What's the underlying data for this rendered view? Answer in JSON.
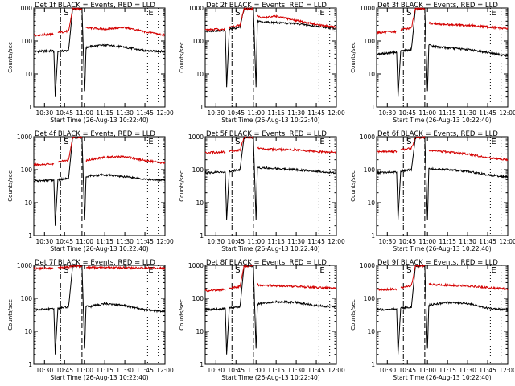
{
  "colors": {
    "events": "#000000",
    "lld": "#d40000",
    "background": "#ffffff"
  },
  "chart_data": [
    {
      "type": "line",
      "title": "Det 1f BLACK = Events, RED = LLD",
      "xlabel": "Start Time (26-Aug-13 10:22:40)",
      "ylabel": "Counts/sec",
      "x_ticks": [
        "10:30",
        "10:45",
        "11:00",
        "11:15",
        "11:30",
        "11:45",
        "12:00"
      ],
      "xlim": [
        "10:22",
        "12:00"
      ],
      "y_ticks": [
        "1",
        "10",
        "100",
        "1000"
      ],
      "ylim": [
        1,
        1000
      ],
      "y_scale": "log",
      "markers": [
        "S",
        "E"
      ],
      "grid": false,
      "series": [
        {
          "name": "Events",
          "color": "#000000",
          "x": [
            "10:22",
            "10:35",
            "10:37",
            "10:38",
            "10:40",
            "10:48",
            "10:51",
            "10:58",
            "11:00",
            "11:01",
            "11:03",
            "11:15",
            "11:30",
            "11:45",
            "12:00"
          ],
          "y": [
            48,
            50,
            50,
            2,
            48,
            52,
            950,
            950,
            3,
            60,
            68,
            75,
            65,
            50,
            48
          ]
        },
        {
          "name": "LLD",
          "color": "#d40000",
          "x": [
            "10:22",
            "10:35",
            "10:37",
            "10:38",
            "10:40",
            "10:48",
            "10:51",
            "10:58",
            "11:00",
            "11:01",
            "11:03",
            "11:15",
            "11:30",
            "11:45",
            "12:00"
          ],
          "y": [
            150,
            160,
            160,
            null,
            180,
            200,
            950,
            950,
            null,
            250,
            250,
            230,
            260,
            190,
            150
          ]
        }
      ]
    },
    {
      "type": "line",
      "title": "Det 2f BLACK = Events, RED = LLD",
      "xlabel": "Start Time (26-Aug-13 10:22:40)",
      "ylabel": "Counts/sec",
      "x_ticks": [
        "10:30",
        "10:45",
        "11:00",
        "11:15",
        "11:30",
        "11:45",
        "12:00"
      ],
      "xlim": [
        "10:22",
        "12:00"
      ],
      "y_ticks": [
        "1",
        "10",
        "100",
        "1000"
      ],
      "ylim": [
        1,
        1000
      ],
      "y_scale": "log",
      "markers": [
        "S",
        "E"
      ],
      "grid": false,
      "series": [
        {
          "name": "Events",
          "color": "#000000",
          "x": [
            "10:22",
            "10:35",
            "10:37",
            "10:38",
            "10:40",
            "10:48",
            "10:51",
            "10:58",
            "11:00",
            "11:01",
            "11:03",
            "11:15",
            "11:30",
            "11:45",
            "12:00"
          ],
          "y": [
            200,
            210,
            210,
            4,
            230,
            260,
            950,
            950,
            4,
            400,
            380,
            360,
            340,
            280,
            240
          ]
        },
        {
          "name": "LLD",
          "color": "#d40000",
          "x": [
            "10:22",
            "10:35",
            "10:37",
            "10:38",
            "10:40",
            "10:48",
            "10:51",
            "10:58",
            "11:00",
            "11:01",
            "11:03",
            "11:15",
            "11:30",
            "11:45",
            "12:00"
          ],
          "y": [
            220,
            230,
            230,
            null,
            260,
            300,
            950,
            950,
            null,
            600,
            500,
            560,
            420,
            320,
            260
          ]
        }
      ]
    },
    {
      "type": "line",
      "title": "Det 3f BLACK = Events, RED = LLD",
      "xlabel": "Start Time (26-Aug-13 10:22:40)",
      "ylabel": "Counts/sec",
      "x_ticks": [
        "10:30",
        "10:45",
        "11:00",
        "11:15",
        "11:30",
        "11:45",
        "12:00"
      ],
      "xlim": [
        "10:22",
        "12:00"
      ],
      "y_ticks": [
        "1",
        "10",
        "100",
        "1000"
      ],
      "ylim": [
        1,
        1000
      ],
      "y_scale": "log",
      "markers": [
        "S",
        "E"
      ],
      "grid": false,
      "series": [
        {
          "name": "Events",
          "color": "#000000",
          "x": [
            "10:22",
            "10:35",
            "10:37",
            "10:38",
            "10:40",
            "10:48",
            "10:51",
            "10:58",
            "11:00",
            "11:01",
            "11:03",
            "11:15",
            "11:30",
            "11:45",
            "12:00"
          ],
          "y": [
            40,
            45,
            45,
            2,
            50,
            55,
            950,
            950,
            3,
            75,
            70,
            62,
            55,
            45,
            35
          ]
        },
        {
          "name": "LLD",
          "color": "#d40000",
          "x": [
            "10:22",
            "10:35",
            "10:37",
            "10:38",
            "10:40",
            "10:48",
            "10:51",
            "10:58",
            "11:00",
            "11:01",
            "11:03",
            "11:15",
            "11:30",
            "11:45",
            "12:00"
          ],
          "y": [
            180,
            190,
            190,
            null,
            220,
            250,
            950,
            950,
            null,
            360,
            340,
            320,
            300,
            270,
            240
          ]
        }
      ]
    },
    {
      "type": "line",
      "title": "Det 4f BLACK = Events, RED = LLD",
      "xlabel": "Start Time (26-Aug-13 10:22:40)",
      "ylabel": "Counts/sec",
      "x_ticks": [
        "10:30",
        "10:45",
        "11:00",
        "11:15",
        "11:30",
        "11:45",
        "12:00"
      ],
      "xlim": [
        "10:22",
        "12:00"
      ],
      "y_ticks": [
        "1",
        "10",
        "100",
        "1000"
      ],
      "ylim": [
        1,
        1000
      ],
      "y_scale": "log",
      "markers": [
        "S",
        "E"
      ],
      "grid": false,
      "series": [
        {
          "name": "Events",
          "color": "#000000",
          "x": [
            "10:22",
            "10:35",
            "10:37",
            "10:38",
            "10:40",
            "10:48",
            "10:51",
            "10:58",
            "11:00",
            "11:01",
            "11:03",
            "11:15",
            "11:30",
            "11:45",
            "12:00"
          ],
          "y": [
            45,
            48,
            48,
            2,
            50,
            55,
            950,
            950,
            3,
            60,
            65,
            70,
            62,
            52,
            48
          ]
        },
        {
          "name": "LLD",
          "color": "#d40000",
          "x": [
            "10:22",
            "10:35",
            "10:37",
            "10:38",
            "10:40",
            "10:48",
            "10:51",
            "10:58",
            "11:00",
            "11:01",
            "11:03",
            "11:15",
            "11:30",
            "11:45",
            "12:00"
          ],
          "y": [
            140,
            150,
            150,
            null,
            170,
            200,
            950,
            950,
            null,
            190,
            200,
            240,
            250,
            190,
            160
          ]
        }
      ]
    },
    {
      "type": "line",
      "title": "Det 5f BLACK = Events, RED = LLD",
      "xlabel": "Start Time (26-Aug-13 10:22:40)",
      "ylabel": "Counts/sec",
      "x_ticks": [
        "10:30",
        "10:45",
        "11:00",
        "11:15",
        "11:30",
        "11:45",
        "12:00"
      ],
      "xlim": [
        "10:22",
        "12:00"
      ],
      "y_ticks": [
        "1",
        "10",
        "100",
        "1000"
      ],
      "ylim": [
        1,
        1000
      ],
      "y_scale": "log",
      "markers": [
        "S",
        "E"
      ],
      "grid": false,
      "series": [
        {
          "name": "Events",
          "color": "#000000",
          "x": [
            "10:22",
            "10:35",
            "10:37",
            "10:38",
            "10:40",
            "10:48",
            "10:51",
            "10:58",
            "11:00",
            "11:01",
            "11:03",
            "11:15",
            "11:30",
            "11:45",
            "12:00"
          ],
          "y": [
            80,
            85,
            85,
            3,
            90,
            100,
            950,
            950,
            3,
            120,
            115,
            110,
            100,
            90,
            80
          ]
        },
        {
          "name": "LLD",
          "color": "#d40000",
          "x": [
            "10:22",
            "10:35",
            "10:37",
            "10:38",
            "10:40",
            "10:48",
            "10:51",
            "10:58",
            "11:00",
            "11:01",
            "11:03",
            "11:15",
            "11:30",
            "11:45",
            "12:00"
          ],
          "y": [
            330,
            340,
            340,
            null,
            370,
            400,
            950,
            950,
            null,
            450,
            430,
            410,
            400,
            360,
            330
          ]
        }
      ]
    },
    {
      "type": "line",
      "title": "Det 6f BLACK = Events, RED = LLD",
      "xlabel": "Start Time (26-Aug-13 10:22:40)",
      "ylabel": "Counts/sec",
      "x_ticks": [
        "10:30",
        "10:45",
        "11:00",
        "11:15",
        "11:30",
        "11:45",
        "12:00"
      ],
      "xlim": [
        "10:22",
        "12:00"
      ],
      "y_ticks": [
        "1",
        "10",
        "100",
        "1000"
      ],
      "ylim": [
        1,
        1000
      ],
      "y_scale": "log",
      "markers": [
        "S",
        "E"
      ],
      "grid": false,
      "series": [
        {
          "name": "Events",
          "color": "#000000",
          "x": [
            "10:22",
            "10:35",
            "10:37",
            "10:38",
            "10:40",
            "10:48",
            "10:51",
            "10:58",
            "11:00",
            "11:01",
            "11:03",
            "11:15",
            "11:30",
            "11:45",
            "12:00"
          ],
          "y": [
            80,
            85,
            85,
            3,
            90,
            100,
            950,
            950,
            3,
            110,
            105,
            100,
            90,
            70,
            60
          ]
        },
        {
          "name": "LLD",
          "color": "#d40000",
          "x": [
            "10:22",
            "10:35",
            "10:37",
            "10:38",
            "10:40",
            "10:48",
            "10:51",
            "10:58",
            "11:00",
            "11:01",
            "11:03",
            "11:15",
            "11:30",
            "11:45",
            "12:00"
          ],
          "y": [
            350,
            360,
            360,
            null,
            400,
            450,
            950,
            950,
            null,
            400,
            380,
            340,
            300,
            230,
            200
          ]
        }
      ]
    },
    {
      "type": "line",
      "title": "Det 7f BLACK = Events, RED = LLD",
      "xlabel": "Start Time (26-Aug-13 10:22:40)",
      "ylabel": "Counts/sec",
      "x_ticks": [
        "10:30",
        "10:45",
        "11:00",
        "11:15",
        "11:30",
        "11:45",
        "12:00"
      ],
      "xlim": [
        "10:22",
        "12:00"
      ],
      "y_ticks": [
        "1",
        "10",
        "100",
        "1000"
      ],
      "ylim": [
        1,
        1000
      ],
      "y_scale": "log",
      "markers": [
        "S",
        "E"
      ],
      "grid": false,
      "series": [
        {
          "name": "Events",
          "color": "#000000",
          "x": [
            "10:22",
            "10:35",
            "10:37",
            "10:38",
            "10:40",
            "10:48",
            "10:51",
            "10:58",
            "11:00",
            "11:01",
            "11:03",
            "11:15",
            "11:30",
            "11:45",
            "12:00"
          ],
          "y": [
            45,
            48,
            48,
            2,
            50,
            55,
            950,
            950,
            3,
            60,
            55,
            70,
            60,
            45,
            40
          ]
        },
        {
          "name": "LLD",
          "color": "#d40000",
          "x": [
            "10:22",
            "10:35",
            "10:37",
            "10:38",
            "10:40",
            "10:48",
            "10:51",
            "10:58",
            "11:00",
            "11:01",
            "11:03",
            "11:15",
            "11:30",
            "11:45",
            "12:00"
          ],
          "y": [
            800,
            820,
            820,
            null,
            850,
            870,
            950,
            950,
            null,
            860,
            850,
            860,
            840,
            830,
            820
          ]
        }
      ]
    },
    {
      "type": "line",
      "title": "Det 8f BLACK = Events, RED = LLD",
      "xlabel": "Start Time (26-Aug-13 10:22:40)",
      "ylabel": "Counts/sec",
      "x_ticks": [
        "10:30",
        "10:45",
        "11:00",
        "11:15",
        "11:30",
        "11:45",
        "12:00"
      ],
      "xlim": [
        "10:22",
        "12:00"
      ],
      "y_ticks": [
        "1",
        "10",
        "100",
        "1000"
      ],
      "ylim": [
        1,
        1000
      ],
      "y_scale": "log",
      "markers": [
        "S",
        "E"
      ],
      "grid": false,
      "series": [
        {
          "name": "Events",
          "color": "#000000",
          "x": [
            "10:22",
            "10:35",
            "10:37",
            "10:38",
            "10:40",
            "10:48",
            "10:51",
            "10:58",
            "11:00",
            "11:01",
            "11:03",
            "11:15",
            "11:30",
            "11:45",
            "12:00"
          ],
          "y": [
            45,
            48,
            48,
            2,
            52,
            55,
            950,
            950,
            3,
            65,
            70,
            80,
            75,
            60,
            55
          ]
        },
        {
          "name": "LLD",
          "color": "#d40000",
          "x": [
            "10:22",
            "10:35",
            "10:37",
            "10:38",
            "10:40",
            "10:48",
            "10:51",
            "10:58",
            "11:00",
            "11:01",
            "11:03",
            "11:15",
            "11:30",
            "11:45",
            "12:00"
          ],
          "y": [
            170,
            180,
            180,
            null,
            200,
            230,
            950,
            950,
            null,
            260,
            250,
            240,
            230,
            210,
            200
          ]
        }
      ]
    },
    {
      "type": "line",
      "title": "Det 9f BLACK = Events, RED = LLD",
      "xlabel": "Start Time (26-Aug-13 10:22:40)",
      "ylabel": "Counts/sec",
      "x_ticks": [
        "10:30",
        "10:45",
        "11:00",
        "11:15",
        "11:30",
        "11:45",
        "12:00"
      ],
      "xlim": [
        "10:22",
        "12:00"
      ],
      "y_ticks": [
        "1",
        "10",
        "100",
        "1000"
      ],
      "ylim": [
        1,
        1000
      ],
      "y_scale": "log",
      "markers": [
        "S",
        "E"
      ],
      "grid": false,
      "series": [
        {
          "name": "Events",
          "color": "#000000",
          "x": [
            "10:22",
            "10:35",
            "10:37",
            "10:38",
            "10:40",
            "10:48",
            "10:51",
            "10:58",
            "11:00",
            "11:01",
            "11:03",
            "11:15",
            "11:30",
            "11:45",
            "12:00"
          ],
          "y": [
            45,
            48,
            48,
            2,
            50,
            55,
            950,
            950,
            3,
            62,
            65,
            75,
            70,
            50,
            45
          ]
        },
        {
          "name": "LLD",
          "color": "#d40000",
          "x": [
            "10:22",
            "10:35",
            "10:37",
            "10:38",
            "10:40",
            "10:48",
            "10:51",
            "10:58",
            "11:00",
            "11:01",
            "11:03",
            "11:15",
            "11:30",
            "11:45",
            "12:00"
          ],
          "y": [
            180,
            190,
            190,
            null,
            210,
            240,
            950,
            950,
            null,
            270,
            260,
            250,
            240,
            210,
            190
          ]
        }
      ]
    }
  ]
}
